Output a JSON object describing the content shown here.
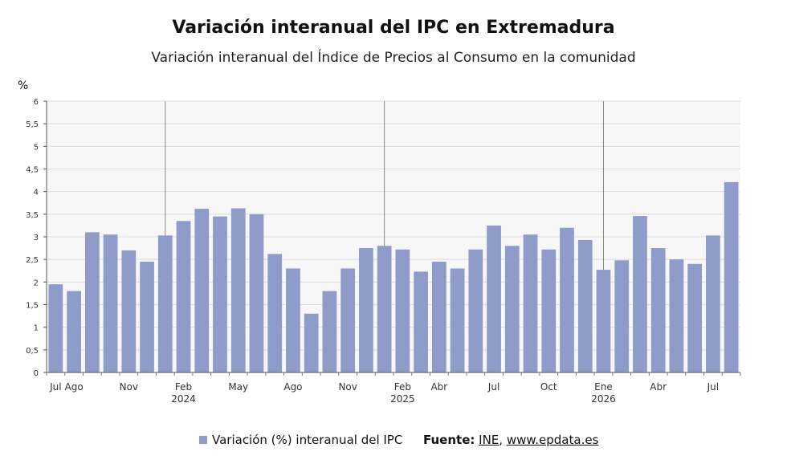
{
  "chart_data": {
    "type": "bar",
    "title": "Variación interanual del IPC en Extremadura",
    "subtitle": "Variación interanual del Índice de Precios al Consumo en la comunidad",
    "ylabel": "%",
    "ylim": [
      0,
      6
    ],
    "yticks": [
      "0",
      "0,5",
      "1",
      "1,5",
      "2",
      "2,5",
      "3",
      "3,5",
      "4",
      "4,5",
      "5",
      "5,5",
      "6"
    ],
    "categories": [
      "Jul 2023",
      "Ago 2023",
      "Sep 2023",
      "Oct 2023",
      "Nov 2023",
      "Dic 2023",
      "Ene 2024",
      "Feb 2024",
      "Mar 2024",
      "Abr 2024",
      "May 2024",
      "Jun 2024",
      "Jul 2024",
      "Ago 2024",
      "Sep 2024",
      "Oct 2024",
      "Nov 2024",
      "Dic 2024",
      "Ene 2025",
      "Feb 2025",
      "Mar 2025",
      "Abr 2025",
      "May 2025",
      "Jun 2025",
      "Jul 2025",
      "Ago 2025",
      "Sep 2025",
      "Oct 2025",
      "Nov 2025",
      "Dic 2025",
      "Ene 2026",
      "Feb 2026",
      "Mar 2026",
      "Abr 2026",
      "May 2026",
      "Jun 2026",
      "Jul 2026",
      "Ago 2026"
    ],
    "series": [
      {
        "name": "Variación (%) interanual del IPC",
        "color": "#8f9bc9",
        "values": [
          1.95,
          1.8,
          3.1,
          3.05,
          2.7,
          2.45,
          3.03,
          3.35,
          3.62,
          3.45,
          3.63,
          3.5,
          2.62,
          2.3,
          1.3,
          1.8,
          2.3,
          2.75,
          2.8,
          2.72,
          2.23,
          2.45,
          2.3,
          2.72,
          3.25,
          2.8,
          3.05,
          2.72,
          3.2,
          2.93,
          2.27,
          2.48,
          3.46,
          2.75,
          2.5,
          2.4,
          3.03,
          4.21
        ]
      }
    ],
    "xtick_labels": [
      {
        "index": 0,
        "label": "Jul"
      },
      {
        "index": 1,
        "label": "Ago"
      },
      {
        "index": 4,
        "label": "Nov"
      },
      {
        "index": 7,
        "label": "Feb"
      },
      {
        "index": 10,
        "label": "May"
      },
      {
        "index": 13,
        "label": "Ago"
      },
      {
        "index": 16,
        "label": "Nov"
      },
      {
        "index": 19,
        "label": "Feb"
      },
      {
        "index": 21,
        "label": "Abr"
      },
      {
        "index": 24,
        "label": "Jul"
      },
      {
        "index": 27,
        "label": "Oct"
      },
      {
        "index": 30,
        "label": "Ene"
      },
      {
        "index": 33,
        "label": "Abr"
      },
      {
        "index": 36,
        "label": "Jul"
      }
    ],
    "year_labels": [
      {
        "index": 7,
        "label": "2024"
      },
      {
        "index": 19,
        "label": "2025"
      },
      {
        "index": 30,
        "label": "2026"
      }
    ],
    "year_separator_indices": [
      6,
      18,
      30
    ],
    "grid": true,
    "legend_position": "bottom"
  },
  "legend": {
    "label": "Variación (%) interanual del IPC"
  },
  "source": {
    "prefix": "Fuente:",
    "ine": "INE",
    "sep": ",",
    "site": "www.epdata.es"
  }
}
